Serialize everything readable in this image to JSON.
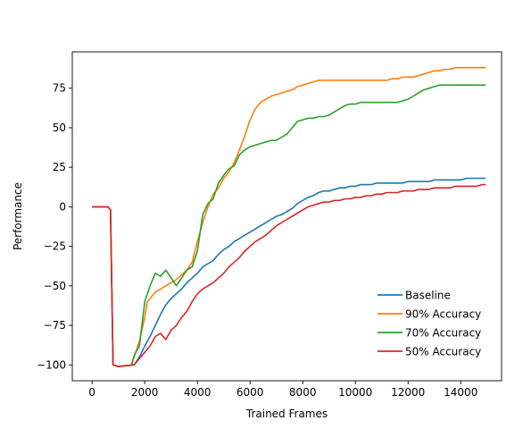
{
  "chart_data": {
    "type": "line",
    "title": "",
    "xlabel": "Trained Frames",
    "ylabel": "Performance",
    "xlim": [
      -750,
      15550
    ],
    "ylim": [
      -110,
      98
    ],
    "x_ticks": [
      0,
      2000,
      4000,
      6000,
      8000,
      10000,
      12000,
      14000
    ],
    "y_ticks": [
      -100,
      -75,
      -50,
      -25,
      0,
      25,
      50,
      75
    ],
    "grid": false,
    "legend_position": "lower-right",
    "series": [
      {
        "name": "Baseline",
        "color": "#1f77b4",
        "points": [
          [
            0,
            0
          ],
          [
            600,
            0
          ],
          [
            700,
            -2
          ],
          [
            800,
            -100
          ],
          [
            1000,
            -101
          ],
          [
            1600,
            -100
          ],
          [
            1800,
            -95
          ],
          [
            2000,
            -88
          ],
          [
            2200,
            -82
          ],
          [
            2400,
            -75
          ],
          [
            2600,
            -68
          ],
          [
            2800,
            -62
          ],
          [
            3000,
            -58
          ],
          [
            3200,
            -55
          ],
          [
            3400,
            -52
          ],
          [
            3600,
            -48
          ],
          [
            3800,
            -45
          ],
          [
            4000,
            -42
          ],
          [
            4200,
            -38
          ],
          [
            4400,
            -36
          ],
          [
            4600,
            -34
          ],
          [
            4800,
            -30
          ],
          [
            5000,
            -27
          ],
          [
            5200,
            -25
          ],
          [
            5400,
            -22
          ],
          [
            5600,
            -20
          ],
          [
            5800,
            -18
          ],
          [
            6000,
            -16
          ],
          [
            6200,
            -14
          ],
          [
            6400,
            -12
          ],
          [
            6600,
            -10
          ],
          [
            6800,
            -8
          ],
          [
            7000,
            -6
          ],
          [
            7200,
            -5
          ],
          [
            7400,
            -3
          ],
          [
            7600,
            -1
          ],
          [
            7800,
            2
          ],
          [
            8000,
            4
          ],
          [
            8200,
            6
          ],
          [
            8400,
            7
          ],
          [
            8600,
            9
          ],
          [
            8800,
            10
          ],
          [
            9000,
            10
          ],
          [
            9200,
            11
          ],
          [
            9400,
            12
          ],
          [
            9600,
            12
          ],
          [
            9800,
            13
          ],
          [
            10000,
            13
          ],
          [
            10200,
            14
          ],
          [
            10400,
            14
          ],
          [
            10600,
            14
          ],
          [
            10800,
            15
          ],
          [
            11000,
            15
          ],
          [
            11200,
            15
          ],
          [
            11400,
            15
          ],
          [
            11600,
            15
          ],
          [
            11800,
            15
          ],
          [
            12000,
            16
          ],
          [
            12200,
            16
          ],
          [
            12400,
            16
          ],
          [
            12600,
            16
          ],
          [
            12800,
            16
          ],
          [
            13000,
            17
          ],
          [
            13200,
            17
          ],
          [
            13400,
            17
          ],
          [
            13600,
            17
          ],
          [
            13800,
            17
          ],
          [
            14000,
            17
          ],
          [
            14200,
            18
          ],
          [
            14400,
            18
          ],
          [
            14600,
            18
          ],
          [
            14800,
            18
          ],
          [
            14950,
            18
          ]
        ]
      },
      {
        "name": "90% Accuracy",
        "color": "#ff7f0e",
        "points": [
          [
            0,
            0
          ],
          [
            600,
            0
          ],
          [
            700,
            -2
          ],
          [
            800,
            -100
          ],
          [
            1000,
            -101
          ],
          [
            1500,
            -100
          ],
          [
            1600,
            -95
          ],
          [
            1800,
            -85
          ],
          [
            2000,
            -70
          ],
          [
            2100,
            -60
          ],
          [
            2200,
            -58
          ],
          [
            2400,
            -54
          ],
          [
            2600,
            -52
          ],
          [
            2800,
            -50
          ],
          [
            3000,
            -48
          ],
          [
            3200,
            -46
          ],
          [
            3400,
            -43
          ],
          [
            3600,
            -40
          ],
          [
            3800,
            -35
          ],
          [
            4000,
            -22
          ],
          [
            4200,
            -10
          ],
          [
            4400,
            0
          ],
          [
            4600,
            8
          ],
          [
            4800,
            12
          ],
          [
            5000,
            18
          ],
          [
            5200,
            22
          ],
          [
            5400,
            28
          ],
          [
            5600,
            36
          ],
          [
            5800,
            45
          ],
          [
            6000,
            55
          ],
          [
            6200,
            62
          ],
          [
            6400,
            66
          ],
          [
            6600,
            68
          ],
          [
            6800,
            70
          ],
          [
            7000,
            71
          ],
          [
            7200,
            72
          ],
          [
            7400,
            73
          ],
          [
            7600,
            74
          ],
          [
            7800,
            76
          ],
          [
            8000,
            77
          ],
          [
            8200,
            78
          ],
          [
            8400,
            79
          ],
          [
            8600,
            80
          ],
          [
            8800,
            80
          ],
          [
            9000,
            80
          ],
          [
            9200,
            80
          ],
          [
            9400,
            80
          ],
          [
            9600,
            80
          ],
          [
            9800,
            80
          ],
          [
            10000,
            80
          ],
          [
            10200,
            80
          ],
          [
            10400,
            80
          ],
          [
            10600,
            80
          ],
          [
            10800,
            80
          ],
          [
            11000,
            80
          ],
          [
            11200,
            80
          ],
          [
            11400,
            81
          ],
          [
            11600,
            81
          ],
          [
            11800,
            82
          ],
          [
            12000,
            82
          ],
          [
            12200,
            82
          ],
          [
            12400,
            83
          ],
          [
            12600,
            84
          ],
          [
            12800,
            85
          ],
          [
            13000,
            86
          ],
          [
            13200,
            86
          ],
          [
            13400,
            87
          ],
          [
            13600,
            87
          ],
          [
            13800,
            88
          ],
          [
            14000,
            88
          ],
          [
            14200,
            88
          ],
          [
            14400,
            88
          ],
          [
            14600,
            88
          ],
          [
            14800,
            88
          ],
          [
            14950,
            88
          ]
        ]
      },
      {
        "name": "70% Accuracy",
        "color": "#2ca02c",
        "points": [
          [
            0,
            0
          ],
          [
            600,
            0
          ],
          [
            700,
            -2
          ],
          [
            800,
            -100
          ],
          [
            1000,
            -101
          ],
          [
            1500,
            -100
          ],
          [
            1600,
            -94
          ],
          [
            1800,
            -88
          ],
          [
            2000,
            -60
          ],
          [
            2200,
            -50
          ],
          [
            2400,
            -42
          ],
          [
            2600,
            -44
          ],
          [
            2800,
            -40
          ],
          [
            3000,
            -45
          ],
          [
            3200,
            -50
          ],
          [
            3400,
            -45
          ],
          [
            3600,
            -40
          ],
          [
            3800,
            -38
          ],
          [
            4000,
            -28
          ],
          [
            4200,
            -5
          ],
          [
            4400,
            2
          ],
          [
            4600,
            5
          ],
          [
            4800,
            15
          ],
          [
            5000,
            20
          ],
          [
            5200,
            24
          ],
          [
            5400,
            26
          ],
          [
            5600,
            33
          ],
          [
            5800,
            36
          ],
          [
            6000,
            38
          ],
          [
            6200,
            39
          ],
          [
            6400,
            40
          ],
          [
            6600,
            41
          ],
          [
            6800,
            42
          ],
          [
            7000,
            42
          ],
          [
            7200,
            44
          ],
          [
            7400,
            46
          ],
          [
            7600,
            50
          ],
          [
            7800,
            54
          ],
          [
            8000,
            55
          ],
          [
            8200,
            56
          ],
          [
            8400,
            56
          ],
          [
            8600,
            57
          ],
          [
            8800,
            57
          ],
          [
            9000,
            58
          ],
          [
            9200,
            60
          ],
          [
            9400,
            62
          ],
          [
            9600,
            64
          ],
          [
            9800,
            65
          ],
          [
            10000,
            65
          ],
          [
            10200,
            66
          ],
          [
            10400,
            66
          ],
          [
            10600,
            66
          ],
          [
            10800,
            66
          ],
          [
            11000,
            66
          ],
          [
            11200,
            66
          ],
          [
            11400,
            66
          ],
          [
            11600,
            66
          ],
          [
            11800,
            67
          ],
          [
            12000,
            68
          ],
          [
            12200,
            70
          ],
          [
            12400,
            72
          ],
          [
            12600,
            74
          ],
          [
            12800,
            75
          ],
          [
            13000,
            76
          ],
          [
            13200,
            77
          ],
          [
            13400,
            77
          ],
          [
            13600,
            77
          ],
          [
            13800,
            77
          ],
          [
            14000,
            77
          ],
          [
            14200,
            77
          ],
          [
            14400,
            77
          ],
          [
            14600,
            77
          ],
          [
            14800,
            77
          ],
          [
            14950,
            77
          ]
        ]
      },
      {
        "name": "50% Accuracy",
        "color": "#d62728",
        "points": [
          [
            0,
            0
          ],
          [
            600,
            0
          ],
          [
            700,
            -2
          ],
          [
            800,
            -100
          ],
          [
            1000,
            -101
          ],
          [
            1600,
            -100
          ],
          [
            1800,
            -96
          ],
          [
            2000,
            -92
          ],
          [
            2200,
            -88
          ],
          [
            2400,
            -82
          ],
          [
            2600,
            -80
          ],
          [
            2800,
            -84
          ],
          [
            3000,
            -78
          ],
          [
            3200,
            -75
          ],
          [
            3400,
            -70
          ],
          [
            3600,
            -66
          ],
          [
            3800,
            -60
          ],
          [
            4000,
            -55
          ],
          [
            4200,
            -52
          ],
          [
            4400,
            -50
          ],
          [
            4600,
            -48
          ],
          [
            4800,
            -45
          ],
          [
            5000,
            -42
          ],
          [
            5200,
            -38
          ],
          [
            5400,
            -35
          ],
          [
            5600,
            -32
          ],
          [
            5800,
            -28
          ],
          [
            6000,
            -25
          ],
          [
            6200,
            -22
          ],
          [
            6400,
            -20
          ],
          [
            6600,
            -18
          ],
          [
            6800,
            -15
          ],
          [
            7000,
            -12
          ],
          [
            7200,
            -10
          ],
          [
            7400,
            -8
          ],
          [
            7600,
            -6
          ],
          [
            7800,
            -4
          ],
          [
            8000,
            -2
          ],
          [
            8200,
            0
          ],
          [
            8400,
            1
          ],
          [
            8600,
            2
          ],
          [
            8800,
            3
          ],
          [
            9000,
            3
          ],
          [
            9200,
            4
          ],
          [
            9400,
            4
          ],
          [
            9600,
            5
          ],
          [
            9800,
            5
          ],
          [
            10000,
            6
          ],
          [
            10200,
            6
          ],
          [
            10400,
            7
          ],
          [
            10600,
            7
          ],
          [
            10800,
            8
          ],
          [
            11000,
            8
          ],
          [
            11200,
            9
          ],
          [
            11400,
            9
          ],
          [
            11600,
            9
          ],
          [
            11800,
            10
          ],
          [
            12000,
            10
          ],
          [
            12200,
            10
          ],
          [
            12400,
            11
          ],
          [
            12600,
            11
          ],
          [
            12800,
            11
          ],
          [
            13000,
            12
          ],
          [
            13200,
            12
          ],
          [
            13400,
            12
          ],
          [
            13600,
            12
          ],
          [
            13800,
            13
          ],
          [
            14000,
            13
          ],
          [
            14200,
            13
          ],
          [
            14400,
            13
          ],
          [
            14600,
            13
          ],
          [
            14800,
            14
          ],
          [
            14950,
            14
          ]
        ]
      }
    ]
  }
}
